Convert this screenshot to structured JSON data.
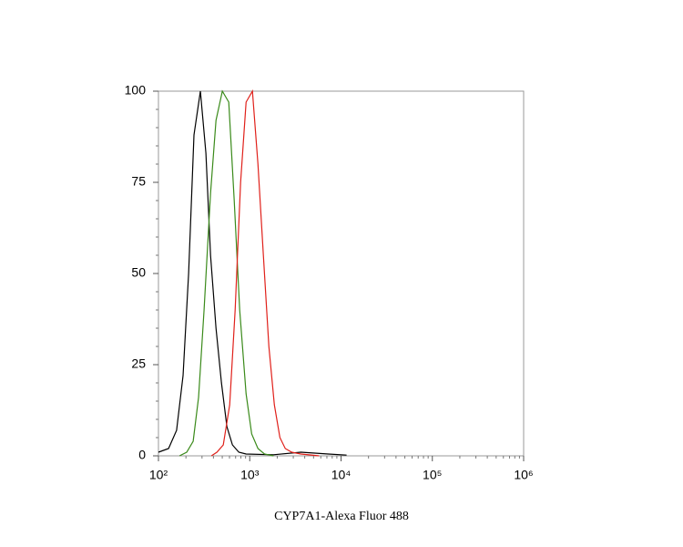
{
  "chart_data": {
    "type": "line",
    "xlabel": "CYP7A1-Alexa Fluor 488",
    "xscale": "log",
    "xlim": [
      100,
      1000000
    ],
    "xticks": [
      {
        "value": 100,
        "label": "10²"
      },
      {
        "value": 1000,
        "label": "10³"
      },
      {
        "value": 10000,
        "label": "10⁴"
      },
      {
        "value": 100000,
        "label": "10⁵"
      },
      {
        "value": 1000000,
        "label": "10⁶"
      }
    ],
    "ylim": [
      0,
      100
    ],
    "yticks": [
      0,
      25,
      50,
      75,
      100
    ],
    "series": [
      {
        "color": "#000000",
        "x": [
          100,
          129,
          158,
          186,
          214,
          245,
          288,
          331,
          372,
          427,
          490,
          562,
          646,
          759,
          912,
          1820,
          3630,
          7240,
          11500
        ],
        "values": [
          1,
          2,
          7,
          22,
          50,
          88,
          100,
          83,
          55,
          35,
          20,
          8,
          3,
          1,
          0.5,
          0.3,
          1,
          0.5,
          0.2
        ]
      },
      {
        "color": "#3a8a1a",
        "x": [
          170,
          204,
          240,
          275,
          316,
          372,
          427,
          501,
          589,
          676,
          776,
          912,
          1050,
          1230,
          1450,
          1820
        ],
        "values": [
          0,
          1,
          4,
          16,
          40,
          72,
          92,
          100,
          97,
          70,
          40,
          17,
          6,
          2,
          0.5,
          0
        ]
      },
      {
        "color": "#e0201a",
        "x": [
          380,
          437,
          513,
          603,
          692,
          794,
          912,
          1070,
          1230,
          1410,
          1620,
          1860,
          2140,
          2450,
          2880,
          3630,
          5750
        ],
        "values": [
          0,
          1,
          3,
          14,
          40,
          75,
          97,
          100,
          80,
          55,
          30,
          14,
          5,
          2,
          1,
          0.5,
          0
        ]
      }
    ]
  }
}
